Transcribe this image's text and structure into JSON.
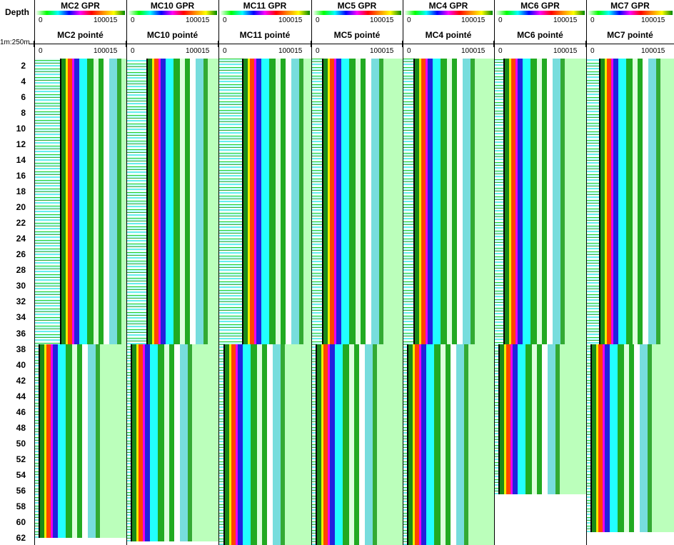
{
  "header": {
    "depth_label": "Depth",
    "scale": "1m:250m"
  },
  "tracks": [
    {
      "gpr": "MC2 GPR",
      "gpr_min": "0",
      "gpr_max": "100015",
      "picked": "MC2 pointé",
      "picked_min": "0",
      "picked_max": "100015"
    },
    {
      "gpr": "MC10 GPR",
      "gpr_min": "0",
      "gpr_max": "100015",
      "picked": "MC10 pointé",
      "picked_min": "0",
      "picked_max": "100015"
    },
    {
      "gpr": "MC11 GPR",
      "gpr_min": "0",
      "gpr_max": "100015",
      "picked": "MC11 pointé",
      "picked_min": "0",
      "picked_max": "100015"
    },
    {
      "gpr": "MC5 GPR",
      "gpr_min": "0",
      "gpr_max": "100015",
      "picked": "MC5 pointé",
      "picked_min": "0",
      "picked_max": "100015"
    },
    {
      "gpr": "MC4 GPR",
      "gpr_min": "0",
      "gpr_max": "100015",
      "picked": "MC4 pointé",
      "picked_min": "0",
      "picked_max": "100015"
    },
    {
      "gpr": "MC6 GPR",
      "gpr_min": "0",
      "gpr_max": "100015",
      "picked": "MC6 pointé",
      "picked_min": "0",
      "picked_max": "100015"
    },
    {
      "gpr": "MC7 GPR",
      "gpr_min": "0",
      "gpr_max": "100015",
      "picked": "MC7 pointé",
      "picked_min": "0",
      "picked_max": "100015"
    }
  ],
  "depth_ticks": [
    "2",
    "4",
    "6",
    "8",
    "10",
    "12",
    "14",
    "16",
    "18",
    "20",
    "22",
    "24",
    "26",
    "28",
    "30",
    "32",
    "34",
    "36",
    "38",
    "40",
    "42",
    "44",
    "46",
    "48",
    "50",
    "52",
    "54",
    "56",
    "58",
    "60",
    "62"
  ]
}
